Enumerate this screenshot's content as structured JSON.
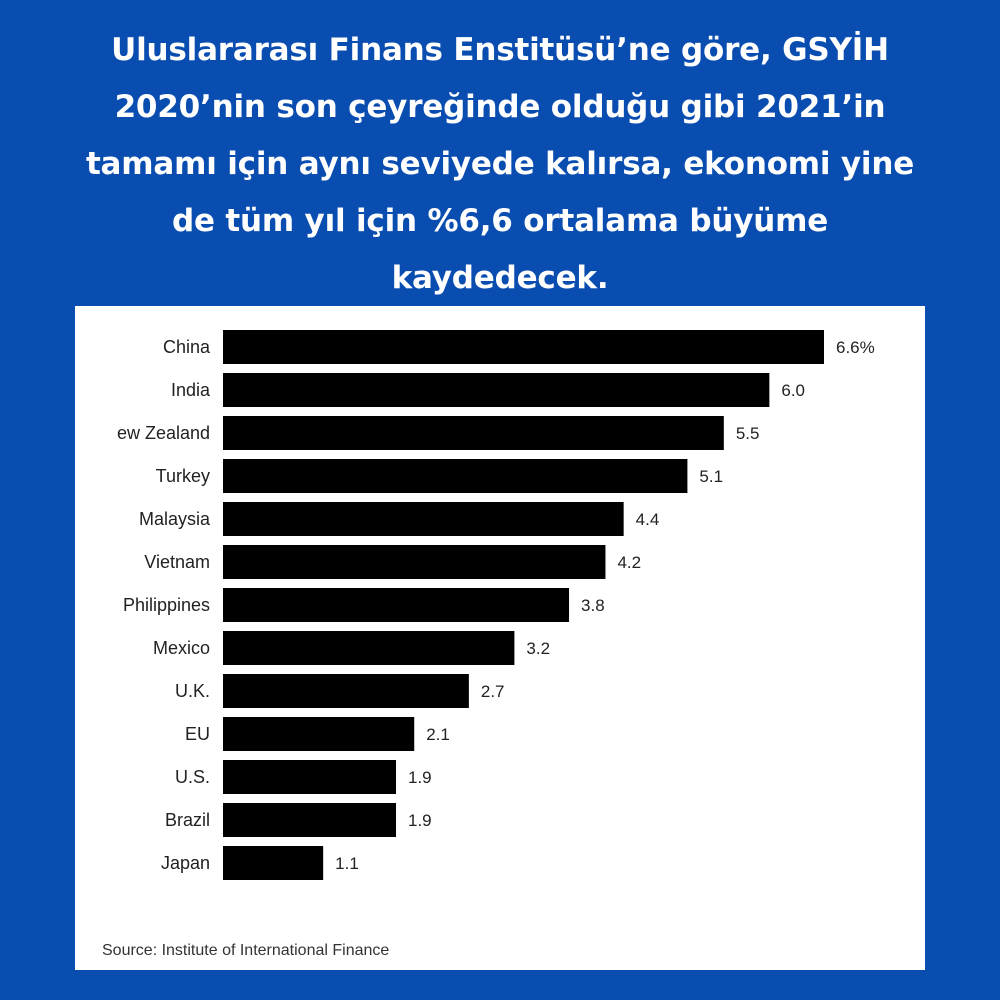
{
  "headline": {
    "lines": [
      "Uluslararası Finans Enstitüsü’ne göre, GSYİH",
      "2020’nin son çeyreğinde olduğu gibi 2021’in",
      "tamamı için aynı seviyede kalırsa, ekonomi yine",
      "de tüm yıl için %6,6 ortalama büyüme",
      "kaydedecek."
    ]
  },
  "colors": {
    "background": "#0a4db0",
    "card": "#ffffff",
    "bar": "#000000",
    "headline_text": "#ffffff"
  },
  "chart_data": {
    "type": "bar",
    "orientation": "horizontal",
    "categories": [
      "China",
      "India",
      "ew Zealand",
      "Turkey",
      "Malaysia",
      "Vietnam",
      "Philippines",
      "Mexico",
      "U.K.",
      "EU",
      "U.S.",
      "Brazil",
      "Japan"
    ],
    "values": [
      6.6,
      6.0,
      5.5,
      5.1,
      4.4,
      4.2,
      3.8,
      3.2,
      2.7,
      2.1,
      1.9,
      1.9,
      1.1
    ],
    "value_labels": [
      "6.6%",
      "6.0",
      "5.5",
      "5.1",
      "4.4",
      "4.2",
      "3.8",
      "3.2",
      "2.7",
      "2.1",
      "1.9",
      "1.9",
      "1.1"
    ],
    "xlim": [
      0,
      6.6
    ],
    "grid": false,
    "legend": "none"
  },
  "source": "Source: Institute of International Finance"
}
